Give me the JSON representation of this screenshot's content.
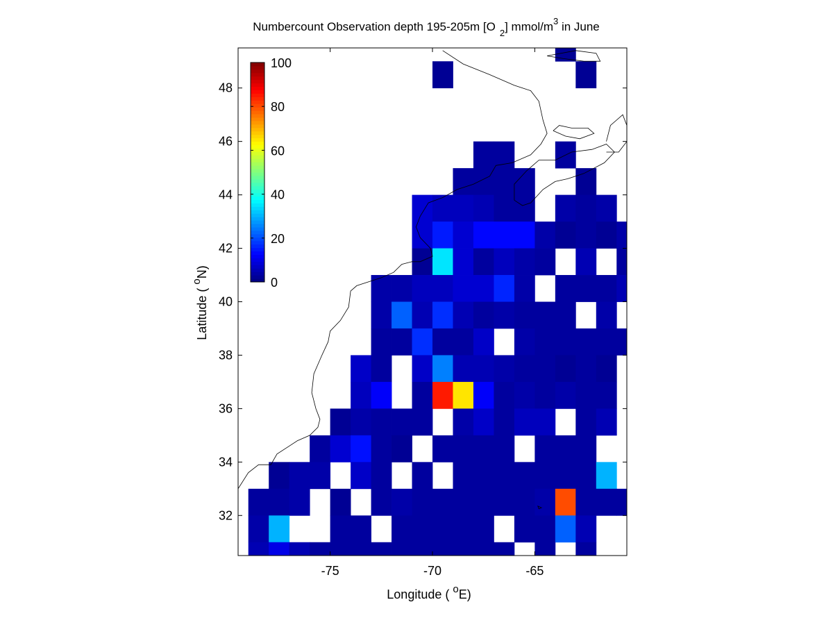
{
  "chart_data": {
    "type": "heatmap",
    "title": {
      "prefix": "Numbercount Observation depth 195-205m [O",
      "sub": "2",
      "mid": "] mmol/m",
      "sup": "3",
      "suffix": " in June"
    },
    "xlabel": {
      "before": "Longitude ( ",
      "sup": "o",
      "after": "E)"
    },
    "ylabel": {
      "before": "Latitude ( ",
      "sup": "o",
      "after": "N)"
    },
    "xlim": [
      -79.5,
      -60.5
    ],
    "ylim": [
      30.5,
      49.5
    ],
    "xticks": [
      -75,
      -70,
      -65
    ],
    "yticks": [
      32,
      34,
      36,
      38,
      40,
      42,
      44,
      46,
      48
    ],
    "colorbar": {
      "min": 0,
      "max": 100,
      "ticks": [
        0,
        20,
        40,
        60,
        80,
        100
      ],
      "colormap": "jet",
      "placement": "top-left"
    },
    "cells": [
      [
        -64,
        49,
        2
      ],
      [
        -70,
        48,
        2
      ],
      [
        -63,
        48,
        2
      ],
      [
        -68,
        45,
        3
      ],
      [
        -67,
        45,
        3
      ],
      [
        -64,
        45,
        3
      ],
      [
        -69,
        44,
        3
      ],
      [
        -68,
        44,
        3
      ],
      [
        -67,
        44,
        3
      ],
      [
        -66,
        44,
        3
      ],
      [
        -63,
        44,
        2
      ],
      [
        -71,
        43,
        8
      ],
      [
        -70,
        43,
        6
      ],
      [
        -69,
        43,
        6
      ],
      [
        -68,
        43,
        5
      ],
      [
        -67,
        43,
        3
      ],
      [
        -66,
        43,
        3
      ],
      [
        -64,
        43,
        4
      ],
      [
        -63,
        43,
        3
      ],
      [
        -62,
        43,
        4
      ],
      [
        -71,
        42,
        8
      ],
      [
        -70,
        42,
        15
      ],
      [
        -69,
        42,
        8
      ],
      [
        -68,
        42,
        13
      ],
      [
        -67,
        42,
        13
      ],
      [
        -66,
        42,
        13
      ],
      [
        -65,
        42,
        4
      ],
      [
        -64,
        42,
        2
      ],
      [
        -63,
        42,
        3
      ],
      [
        -62,
        42,
        2
      ],
      [
        -61,
        42,
        4
      ],
      [
        -71,
        41,
        2
      ],
      [
        -70,
        41,
        35
      ],
      [
        -69,
        41,
        8
      ],
      [
        -68,
        41,
        3
      ],
      [
        -67,
        41,
        6
      ],
      [
        -66,
        41,
        4
      ],
      [
        -65,
        41,
        3
      ],
      [
        -63,
        41,
        5
      ],
      [
        -61,
        41,
        3
      ],
      [
        -73,
        40,
        4
      ],
      [
        -72,
        40,
        4
      ],
      [
        -71,
        40,
        6
      ],
      [
        -70,
        40,
        6
      ],
      [
        -69,
        40,
        8
      ],
      [
        -68,
        40,
        8
      ],
      [
        -67,
        40,
        16
      ],
      [
        -66,
        40,
        4
      ],
      [
        -64,
        40,
        3
      ],
      [
        -63,
        40,
        3
      ],
      [
        -62,
        40,
        3
      ],
      [
        -61,
        40,
        5
      ],
      [
        -73,
        39,
        4
      ],
      [
        -72,
        39,
        22
      ],
      [
        -71,
        39,
        5
      ],
      [
        -70,
        39,
        17
      ],
      [
        -69,
        39,
        5
      ],
      [
        -68,
        39,
        3
      ],
      [
        -67,
        39,
        4
      ],
      [
        -66,
        39,
        3
      ],
      [
        -65,
        39,
        3
      ],
      [
        -64,
        39,
        3
      ],
      [
        -62,
        39,
        4
      ],
      [
        -73,
        38,
        3
      ],
      [
        -72,
        38,
        3
      ],
      [
        -71,
        38,
        17
      ],
      [
        -70,
        38,
        3
      ],
      [
        -69,
        38,
        3
      ],
      [
        -68,
        38,
        7
      ],
      [
        -66,
        38,
        4
      ],
      [
        -65,
        38,
        3
      ],
      [
        -64,
        38,
        3
      ],
      [
        -63,
        38,
        3
      ],
      [
        -62,
        38,
        3
      ],
      [
        -61,
        38,
        3
      ],
      [
        -74,
        37,
        7
      ],
      [
        -73,
        37,
        3
      ],
      [
        -71,
        37,
        7
      ],
      [
        -70,
        37,
        25
      ],
      [
        -69,
        37,
        5
      ],
      [
        -68,
        37,
        5
      ],
      [
        -67,
        37,
        4
      ],
      [
        -66,
        37,
        3
      ],
      [
        -65,
        37,
        3
      ],
      [
        -64,
        37,
        2
      ],
      [
        -63,
        37,
        3
      ],
      [
        -62,
        37,
        2
      ],
      [
        -74,
        36,
        6
      ],
      [
        -73,
        36,
        12
      ],
      [
        -71,
        36,
        3
      ],
      [
        -70,
        36,
        85
      ],
      [
        -69,
        36,
        65
      ],
      [
        -68,
        36,
        12
      ],
      [
        -67,
        36,
        3
      ],
      [
        -66,
        36,
        4
      ],
      [
        -65,
        36,
        3
      ],
      [
        -64,
        36,
        4
      ],
      [
        -63,
        36,
        3
      ],
      [
        -62,
        36,
        3
      ],
      [
        -75,
        35,
        2
      ],
      [
        -74,
        35,
        4
      ],
      [
        -73,
        35,
        3
      ],
      [
        -72,
        35,
        3
      ],
      [
        -71,
        35,
        3
      ],
      [
        -69,
        35,
        4
      ],
      [
        -68,
        35,
        7
      ],
      [
        -67,
        35,
        3
      ],
      [
        -66,
        35,
        6
      ],
      [
        -65,
        35,
        6
      ],
      [
        -63,
        35,
        3
      ],
      [
        -62,
        35,
        5
      ],
      [
        -60,
        35,
        3
      ],
      [
        -76,
        34,
        3
      ],
      [
        -75,
        34,
        8
      ],
      [
        -74,
        34,
        14
      ],
      [
        -73,
        34,
        3
      ],
      [
        -72,
        34,
        2
      ],
      [
        -70,
        34,
        3
      ],
      [
        -69,
        34,
        3
      ],
      [
        -68,
        34,
        3
      ],
      [
        -67,
        34,
        3
      ],
      [
        -65,
        34,
        3
      ],
      [
        -64,
        34,
        3
      ],
      [
        -63,
        34,
        3
      ],
      [
        -78,
        33,
        2
      ],
      [
        -77,
        33,
        4
      ],
      [
        -76,
        33,
        4
      ],
      [
        -74,
        33,
        7
      ],
      [
        -73,
        33,
        3
      ],
      [
        -71,
        33,
        3
      ],
      [
        -69,
        33,
        3
      ],
      [
        -68,
        33,
        3
      ],
      [
        -67,
        33,
        3
      ],
      [
        -66,
        33,
        3
      ],
      [
        -65,
        33,
        3
      ],
      [
        -64,
        33,
        3
      ],
      [
        -63,
        33,
        3
      ],
      [
        -62,
        33,
        30
      ],
      [
        -79,
        32,
        3
      ],
      [
        -78,
        32,
        3
      ],
      [
        -77,
        32,
        4
      ],
      [
        -75,
        32,
        2
      ],
      [
        -73,
        32,
        3
      ],
      [
        -72,
        32,
        4
      ],
      [
        -71,
        32,
        3
      ],
      [
        -70,
        32,
        3
      ],
      [
        -69,
        32,
        3
      ],
      [
        -68,
        32,
        3
      ],
      [
        -67,
        32,
        3
      ],
      [
        -66,
        32,
        3
      ],
      [
        -65,
        32,
        4
      ],
      [
        -64,
        32,
        80
      ],
      [
        -63,
        32,
        3
      ],
      [
        -62,
        32,
        3
      ],
      [
        -61,
        32,
        3
      ],
      [
        -79,
        31,
        4
      ],
      [
        -78,
        31,
        30
      ],
      [
        -75,
        31,
        3
      ],
      [
        -74,
        31,
        3
      ],
      [
        -72,
        31,
        3
      ],
      [
        -71,
        31,
        3
      ],
      [
        -70,
        31,
        3
      ],
      [
        -69,
        31,
        3
      ],
      [
        -68,
        31,
        3
      ],
      [
        -66,
        31,
        3
      ],
      [
        -65,
        31,
        3
      ],
      [
        -64,
        31,
        22
      ],
      [
        -63,
        31,
        5
      ],
      [
        -79,
        30,
        5
      ],
      [
        -78,
        30,
        10
      ],
      [
        -77,
        30,
        5
      ],
      [
        -76,
        30,
        3
      ],
      [
        -75,
        30,
        3
      ],
      [
        -74,
        30,
        3
      ],
      [
        -73,
        30,
        3
      ],
      [
        -72,
        30,
        3
      ],
      [
        -71,
        30,
        3
      ],
      [
        -70,
        30,
        3
      ],
      [
        -69,
        30,
        3
      ],
      [
        -68,
        30,
        3
      ],
      [
        -67,
        30,
        3
      ],
      [
        -65,
        30,
        3
      ],
      [
        -63,
        30,
        3
      ]
    ],
    "coastline": [
      [
        [
          -79.5,
          33.0
        ],
        [
          -79.0,
          33.6
        ],
        [
          -78.5,
          33.9
        ],
        [
          -77.9,
          33.9
        ],
        [
          -77.6,
          34.3
        ],
        [
          -77.0,
          34.6
        ],
        [
          -76.6,
          34.8
        ],
        [
          -76.0,
          35.0
        ],
        [
          -75.6,
          35.3
        ],
        [
          -75.5,
          35.6
        ],
        [
          -75.7,
          36.0
        ],
        [
          -75.9,
          36.6
        ],
        [
          -75.8,
          37.3
        ],
        [
          -75.4,
          38.0
        ],
        [
          -75.1,
          38.5
        ],
        [
          -75.0,
          38.9
        ],
        [
          -74.5,
          39.3
        ],
        [
          -74.1,
          39.8
        ],
        [
          -74.0,
          40.4
        ],
        [
          -73.7,
          40.6
        ],
        [
          -72.5,
          40.9
        ],
        [
          -71.9,
          41.1
        ],
        [
          -71.5,
          41.4
        ],
        [
          -71.0,
          41.5
        ],
        [
          -70.6,
          41.5
        ],
        [
          -70.0,
          41.7
        ],
        [
          -70.1,
          42.0
        ],
        [
          -70.6,
          42.4
        ],
        [
          -70.8,
          42.8
        ],
        [
          -70.6,
          43.2
        ],
        [
          -70.2,
          43.7
        ],
        [
          -69.5,
          43.9
        ],
        [
          -68.8,
          44.2
        ],
        [
          -68.0,
          44.4
        ],
        [
          -67.2,
          44.7
        ],
        [
          -66.9,
          45.1
        ],
        [
          -66.1,
          45.2
        ],
        [
          -65.2,
          45.5
        ],
        [
          -64.7,
          45.9
        ],
        [
          -64.4,
          46.3
        ],
        [
          -64.6,
          46.8
        ],
        [
          -64.8,
          47.5
        ],
        [
          -65.2,
          47.9
        ],
        [
          -66.0,
          48.1
        ],
        [
          -67.2,
          48.5
        ],
        [
          -68.5,
          48.9
        ],
        [
          -69.5,
          49.4
        ]
      ],
      [
        [
          -66.0,
          43.8
        ],
        [
          -65.6,
          43.6
        ],
        [
          -65.2,
          43.7
        ],
        [
          -64.6,
          44.2
        ],
        [
          -64.0,
          44.5
        ],
        [
          -63.4,
          44.6
        ],
        [
          -62.6,
          44.8
        ],
        [
          -61.6,
          45.2
        ],
        [
          -61.1,
          45.6
        ],
        [
          -61.5,
          45.9
        ],
        [
          -62.2,
          45.7
        ],
        [
          -63.2,
          45.6
        ],
        [
          -64.0,
          45.3
        ],
        [
          -64.8,
          45.3
        ],
        [
          -65.4,
          44.9
        ],
        [
          -66.0,
          44.4
        ],
        [
          -66.0,
          43.8
        ]
      ],
      [
        [
          -61.5,
          45.6
        ],
        [
          -60.9,
          45.6
        ],
        [
          -60.5,
          46.0
        ],
        [
          -60.5,
          46.6
        ],
        [
          -60.7,
          47.0
        ],
        [
          -61.3,
          46.6
        ],
        [
          -61.5,
          46.0
        ]
      ],
      [
        [
          -64.1,
          46.4
        ],
        [
          -63.5,
          46.2
        ],
        [
          -62.8,
          46.1
        ],
        [
          -62.1,
          46.3
        ],
        [
          -62.4,
          46.5
        ],
        [
          -63.2,
          46.5
        ],
        [
          -63.8,
          46.6
        ],
        [
          -64.1,
          46.4
        ]
      ],
      [
        [
          -64.4,
          49.2
        ],
        [
          -63.0,
          49.4
        ],
        [
          -62.0,
          49.3
        ],
        [
          -61.8,
          49.0
        ],
        [
          -62.6,
          49.0
        ],
        [
          -63.6,
          49.1
        ],
        [
          -64.4,
          49.2
        ]
      ],
      [
        [
          -64.7,
          32.3
        ],
        [
          -64.85,
          32.35
        ],
        [
          -64.8,
          32.25
        ],
        [
          -64.65,
          32.3
        ]
      ]
    ]
  }
}
